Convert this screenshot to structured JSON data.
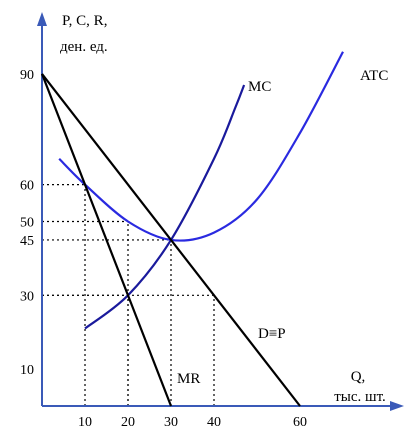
{
  "chart_data": {
    "type": "line",
    "ylabel_lines": [
      "P, C, R,",
      "ден. ед."
    ],
    "xlabel_lines": [
      "Q,",
      "тыс. шт."
    ],
    "xlim": [
      0,
      70
    ],
    "ylim": [
      0,
      100
    ],
    "x_ticks": [
      {
        "value": 10,
        "label": "10"
      },
      {
        "value": 20,
        "label": "20"
      },
      {
        "value": 30,
        "label": "30"
      },
      {
        "value": 40,
        "label": "40"
      },
      {
        "value": 60,
        "label": "60"
      }
    ],
    "y_ticks": [
      {
        "value": 10,
        "label": "10"
      },
      {
        "value": 30,
        "label": "30"
      },
      {
        "value": 45,
        "label": "45"
      },
      {
        "value": 50,
        "label": "50"
      },
      {
        "value": 60,
        "label": "60"
      },
      {
        "value": 90,
        "label": "90"
      }
    ],
    "series": [
      {
        "name": "MC",
        "color": "#1a1a9c",
        "curve": true,
        "points": [
          [
            10,
            21
          ],
          [
            20,
            30
          ],
          [
            30,
            45
          ],
          [
            40,
            67
          ],
          [
            45,
            81
          ],
          [
            47,
            87
          ]
        ]
      },
      {
        "name": "ATC",
        "color": "#2a2ae0",
        "curve": true,
        "points": [
          [
            4,
            67
          ],
          [
            10,
            60
          ],
          [
            20,
            50
          ],
          [
            30,
            45
          ],
          [
            40,
            47
          ],
          [
            50,
            56
          ],
          [
            60,
            74
          ],
          [
            70,
            96
          ]
        ]
      },
      {
        "name": "D≡P",
        "color": "#000000",
        "curve": false,
        "points": [
          [
            0,
            90
          ],
          [
            60,
            0
          ]
        ]
      },
      {
        "name": "MR",
        "color": "#000000",
        "curve": false,
        "points": [
          [
            0,
            90
          ],
          [
            30,
            0
          ]
        ]
      }
    ],
    "reference_lines": [
      {
        "x": 10,
        "y": 60
      },
      {
        "x": 30,
        "y": 45
      },
      {
        "x": 20,
        "y": 30
      },
      {
        "x": 40,
        "y": 30
      },
      {
        "x": 20,
        "y": 50
      }
    ],
    "grid": false,
    "legend": "none"
  }
}
